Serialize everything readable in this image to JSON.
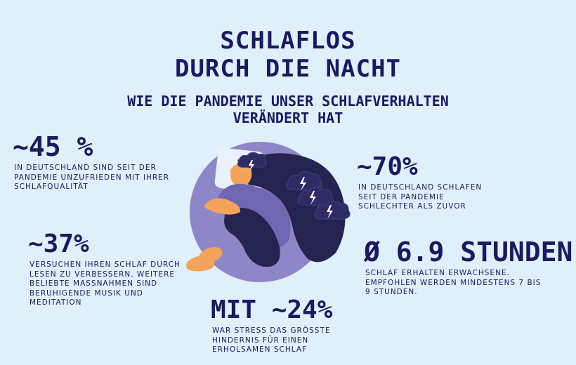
{
  "title": {
    "line1": "SCHLAFLOS",
    "line2": "DURCH DIE NACHT"
  },
  "subtitle": {
    "line1": "WIE DIE PANDEMIE UNSER SCHLAFVERHALTEN",
    "line2": "VERÄNDERT HAT"
  },
  "stats": {
    "s45": {
      "value": "~45 %",
      "desc": [
        "IN DEUTSCHLAND SIND SEIT DER",
        "PANDEMIE UNZUFRIEDEN MIT IHRER",
        "SCHLAFQUALITÄT"
      ]
    },
    "s37": {
      "value": "~37%",
      "desc": [
        "VERSUCHEN IHREN SCHLAF DURCH",
        "LESEN ZU VERBESSERN. WEITERE",
        "BELIEBTE MASSNAHMEN SIND",
        "BERUHIGENDE MUSIK UND",
        "MEDITATION"
      ]
    },
    "s70": {
      "value": "~70%",
      "desc": [
        "IN DEUTSCHLAND SCHLAFEN",
        "SEIT DER PANDEMIE",
        "SCHLECHTER ALS ZUVOR"
      ]
    },
    "s69": {
      "value": "Ø 6.9 STUNDEN",
      "desc": [
        "SCHLAF ERHALTEN ERWACHSENE.",
        "EMPFOHLEN WERDEN MINDESTENS 7 BIS",
        "9 STUNDEN."
      ]
    },
    "s24": {
      "value": "MIT ~24%",
      "desc": [
        "WAR STRESS DAS GRÖSSTE",
        "HINDERNIS FÜR EINEN",
        "ERHOLSAMEN SCHLAF"
      ]
    }
  },
  "colors": {
    "background": "#dff0fb",
    "text": "#1b1a5c",
    "circle": "#8e86c6",
    "clothing": "#25234f",
    "skin": "#f4a35c",
    "pillow": "#e9f2fb"
  }
}
